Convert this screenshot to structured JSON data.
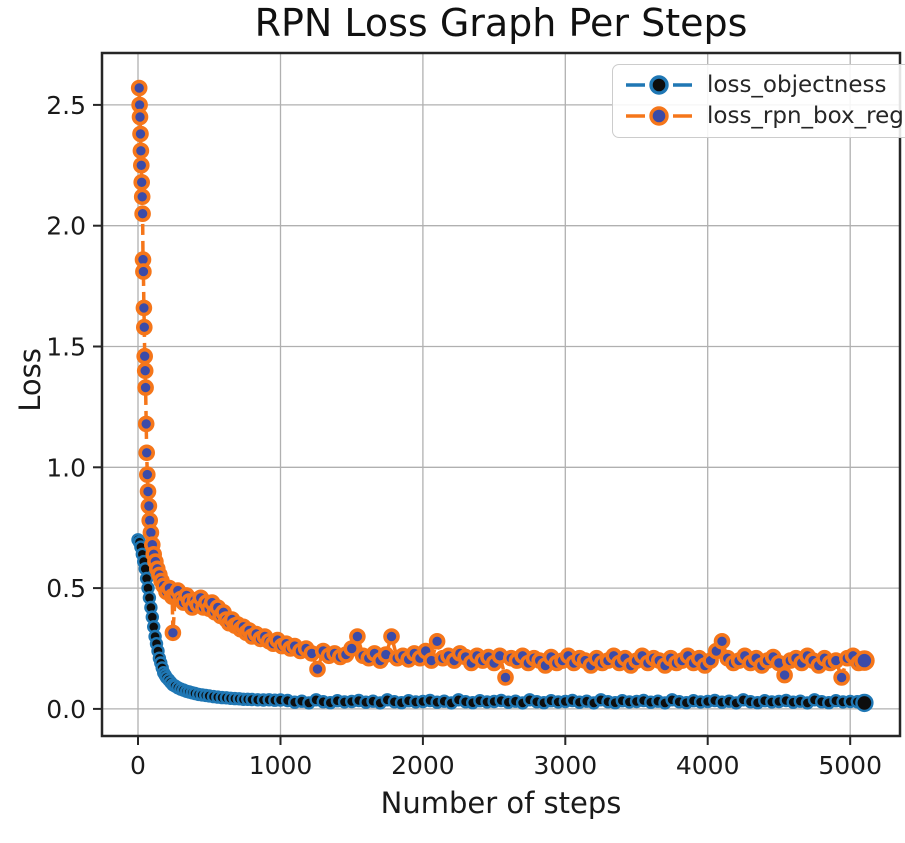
{
  "chart_data": {
    "type": "line",
    "title": "RPN Loss Graph Per Steps",
    "xlabel": "Number of steps",
    "ylabel": "Loss",
    "xlim": [
      -253,
      5350
    ],
    "ylim": [
      -0.112,
      2.715
    ],
    "xticks": [
      0,
      1000,
      2000,
      3000,
      4000,
      5000
    ],
    "xtick_labels": [
      "0",
      "1000",
      "2000",
      "3000",
      "4000",
      "5000"
    ],
    "yticks": [
      0,
      0.5,
      1.0,
      1.5,
      2.0,
      2.5
    ],
    "ytick_labels": [
      "0.0",
      "0.5",
      "1.0",
      "1.5",
      "2.0",
      "2.5"
    ],
    "grid": true,
    "grid_color": "#b0b0b0",
    "axis_color": "#262626",
    "tick_label_color": "#1a1a1a",
    "legend_position": "upper right",
    "series": [
      {
        "name": "loss_objectness",
        "line_color": "#1f77b4",
        "marker_fill": "#0d0d0d",
        "marker_edge": "#1f77b4",
        "linestyle": "dashed",
        "points": [
          [
            0,
            0.7
          ],
          [
            10,
            0.69
          ],
          [
            20,
            0.67
          ],
          [
            30,
            0.64
          ],
          [
            40,
            0.61
          ],
          [
            50,
            0.58
          ],
          [
            60,
            0.54
          ],
          [
            70,
            0.5
          ],
          [
            80,
            0.46
          ],
          [
            90,
            0.42
          ],
          [
            100,
            0.38
          ],
          [
            110,
            0.34
          ],
          [
            120,
            0.3
          ],
          [
            130,
            0.27
          ],
          [
            140,
            0.24
          ],
          [
            150,
            0.21
          ],
          [
            160,
            0.19
          ],
          [
            170,
            0.17
          ],
          [
            180,
            0.15
          ],
          [
            190,
            0.14
          ],
          [
            200,
            0.13
          ],
          [
            215,
            0.12
          ],
          [
            230,
            0.11
          ],
          [
            245,
            0.1
          ],
          [
            260,
            0.095
          ],
          [
            280,
            0.088
          ],
          [
            300,
            0.082
          ],
          [
            320,
            0.078
          ],
          [
            340,
            0.073
          ],
          [
            360,
            0.07
          ],
          [
            380,
            0.067
          ],
          [
            400,
            0.064
          ],
          [
            425,
            0.06
          ],
          [
            450,
            0.058
          ],
          [
            475,
            0.056
          ],
          [
            500,
            0.054
          ],
          [
            530,
            0.051
          ],
          [
            560,
            0.049
          ],
          [
            590,
            0.047
          ],
          [
            620,
            0.046
          ],
          [
            650,
            0.044
          ],
          [
            680,
            0.043
          ],
          [
            710,
            0.042
          ],
          [
            740,
            0.04
          ],
          [
            770,
            0.04
          ],
          [
            800,
            0.039
          ],
          [
            840,
            0.038
          ],
          [
            880,
            0.037
          ],
          [
            920,
            0.038
          ],
          [
            960,
            0.036
          ],
          [
            1000,
            0.037
          ],
          [
            1050,
            0.035
          ],
          [
            1100,
            0.028
          ],
          [
            1150,
            0.032
          ],
          [
            1200,
            0.025
          ],
          [
            1250,
            0.038
          ],
          [
            1300,
            0.03
          ],
          [
            1350,
            0.026
          ],
          [
            1400,
            0.034
          ],
          [
            1450,
            0.029
          ],
          [
            1500,
            0.031
          ],
          [
            1550,
            0.035
          ],
          [
            1600,
            0.028
          ],
          [
            1650,
            0.032
          ],
          [
            1700,
            0.025
          ],
          [
            1750,
            0.038
          ],
          [
            1800,
            0.03
          ],
          [
            1850,
            0.026
          ],
          [
            1900,
            0.034
          ],
          [
            1950,
            0.029
          ],
          [
            2000,
            0.031
          ],
          [
            2050,
            0.035
          ],
          [
            2100,
            0.028
          ],
          [
            2150,
            0.032
          ],
          [
            2200,
            0.025
          ],
          [
            2250,
            0.038
          ],
          [
            2300,
            0.03
          ],
          [
            2350,
            0.026
          ],
          [
            2400,
            0.034
          ],
          [
            2450,
            0.029
          ],
          [
            2500,
            0.031
          ],
          [
            2550,
            0.035
          ],
          [
            2600,
            0.028
          ],
          [
            2650,
            0.032
          ],
          [
            2700,
            0.025
          ],
          [
            2750,
            0.038
          ],
          [
            2800,
            0.03
          ],
          [
            2850,
            0.026
          ],
          [
            2900,
            0.034
          ],
          [
            2950,
            0.029
          ],
          [
            3000,
            0.031
          ],
          [
            3050,
            0.035
          ],
          [
            3100,
            0.028
          ],
          [
            3150,
            0.032
          ],
          [
            3200,
            0.025
          ],
          [
            3250,
            0.038
          ],
          [
            3300,
            0.03
          ],
          [
            3350,
            0.026
          ],
          [
            3400,
            0.034
          ],
          [
            3450,
            0.029
          ],
          [
            3500,
            0.031
          ],
          [
            3550,
            0.035
          ],
          [
            3600,
            0.028
          ],
          [
            3650,
            0.032
          ],
          [
            3700,
            0.025
          ],
          [
            3750,
            0.038
          ],
          [
            3800,
            0.03
          ],
          [
            3850,
            0.026
          ],
          [
            3900,
            0.034
          ],
          [
            3950,
            0.029
          ],
          [
            4000,
            0.031
          ],
          [
            4050,
            0.035
          ],
          [
            4100,
            0.028
          ],
          [
            4150,
            0.032
          ],
          [
            4200,
            0.025
          ],
          [
            4250,
            0.038
          ],
          [
            4300,
            0.03
          ],
          [
            4350,
            0.026
          ],
          [
            4400,
            0.034
          ],
          [
            4450,
            0.029
          ],
          [
            4500,
            0.031
          ],
          [
            4550,
            0.035
          ],
          [
            4600,
            0.028
          ],
          [
            4650,
            0.032
          ],
          [
            4700,
            0.025
          ],
          [
            4750,
            0.038
          ],
          [
            4800,
            0.03
          ],
          [
            4850,
            0.026
          ],
          [
            4900,
            0.034
          ],
          [
            4950,
            0.029
          ],
          [
            5000,
            0.031
          ],
          [
            5050,
            0.03
          ],
          [
            5100,
            0.025
          ]
        ]
      },
      {
        "name": "loss_rpn_box_reg",
        "line_color": "#f5761a",
        "marker_fill": "#3b4ba8",
        "marker_edge": "#f5761a",
        "linestyle": "dashed",
        "points": [
          [
            8,
            2.57
          ],
          [
            11,
            2.5
          ],
          [
            14,
            2.45
          ],
          [
            17,
            2.38
          ],
          [
            20,
            2.31
          ],
          [
            23,
            2.25
          ],
          [
            26,
            2.18
          ],
          [
            29,
            2.12
          ],
          [
            32,
            2.05
          ],
          [
            35,
            1.86
          ],
          [
            38,
            1.81
          ],
          [
            41,
            1.66
          ],
          [
            44,
            1.58
          ],
          [
            47,
            1.46
          ],
          [
            50,
            1.4
          ],
          [
            53,
            1.33
          ],
          [
            57,
            1.18
          ],
          [
            61,
            1.06
          ],
          [
            65,
            0.97
          ],
          [
            70,
            0.9
          ],
          [
            76,
            0.84
          ],
          [
            82,
            0.78
          ],
          [
            90,
            0.73
          ],
          [
            100,
            0.68
          ],
          [
            110,
            0.64
          ],
          [
            122,
            0.61
          ],
          [
            135,
            0.58
          ],
          [
            150,
            0.555
          ],
          [
            165,
            0.53
          ],
          [
            180,
            0.51
          ],
          [
            200,
            0.485
          ],
          [
            220,
            0.5
          ],
          [
            240,
            0.465
          ],
          [
            245,
            0.315
          ],
          [
            262,
            0.47
          ],
          [
            280,
            0.49
          ],
          [
            300,
            0.455
          ],
          [
            320,
            0.44
          ],
          [
            340,
            0.47
          ],
          [
            360,
            0.445
          ],
          [
            380,
            0.42
          ],
          [
            400,
            0.45
          ],
          [
            420,
            0.43
          ],
          [
            440,
            0.46
          ],
          [
            460,
            0.42
          ],
          [
            480,
            0.44
          ],
          [
            500,
            0.415
          ],
          [
            520,
            0.44
          ],
          [
            540,
            0.4
          ],
          [
            560,
            0.42
          ],
          [
            580,
            0.385
          ],
          [
            600,
            0.4
          ],
          [
            620,
            0.37
          ],
          [
            640,
            0.355
          ],
          [
            660,
            0.37
          ],
          [
            680,
            0.345
          ],
          [
            700,
            0.35
          ],
          [
            720,
            0.33
          ],
          [
            740,
            0.34
          ],
          [
            760,
            0.315
          ],
          [
            780,
            0.325
          ],
          [
            800,
            0.3
          ],
          [
            830,
            0.31
          ],
          [
            860,
            0.29
          ],
          [
            890,
            0.3
          ],
          [
            920,
            0.28
          ],
          [
            950,
            0.27
          ],
          [
            980,
            0.285
          ],
          [
            1010,
            0.26
          ],
          [
            1040,
            0.27
          ],
          [
            1070,
            0.25
          ],
          [
            1100,
            0.26
          ],
          [
            1140,
            0.24
          ],
          [
            1180,
            0.25
          ],
          [
            1220,
            0.23
          ],
          [
            1260,
            0.165
          ],
          [
            1300,
            0.24
          ],
          [
            1340,
            0.22
          ],
          [
            1380,
            0.23
          ],
          [
            1420,
            0.215
          ],
          [
            1460,
            0.225
          ],
          [
            1500,
            0.25
          ],
          [
            1540,
            0.3
          ],
          [
            1580,
            0.22
          ],
          [
            1620,
            0.21
          ],
          [
            1660,
            0.23
          ],
          [
            1700,
            0.2
          ],
          [
            1740,
            0.225
          ],
          [
            1780,
            0.3
          ],
          [
            1820,
            0.21
          ],
          [
            1860,
            0.22
          ],
          [
            1900,
            0.205
          ],
          [
            1940,
            0.23
          ],
          [
            1980,
            0.21
          ],
          [
            2020,
            0.24
          ],
          [
            2060,
            0.2
          ],
          [
            2100,
            0.28
          ],
          [
            2140,
            0.21
          ],
          [
            2180,
            0.22
          ],
          [
            2220,
            0.2
          ],
          [
            2260,
            0.23
          ],
          [
            2300,
            0.215
          ],
          [
            2340,
            0.19
          ],
          [
            2380,
            0.22
          ],
          [
            2420,
            0.2
          ],
          [
            2460,
            0.215
          ],
          [
            2500,
            0.19
          ],
          [
            2540,
            0.22
          ],
          [
            2580,
            0.13
          ],
          [
            2620,
            0.21
          ],
          [
            2660,
            0.2
          ],
          [
            2700,
            0.22
          ],
          [
            2740,
            0.19
          ],
          [
            2780,
            0.21
          ],
          [
            2820,
            0.2
          ],
          [
            2860,
            0.18
          ],
          [
            2900,
            0.215
          ],
          [
            2940,
            0.19
          ],
          [
            2980,
            0.2
          ],
          [
            3020,
            0.22
          ],
          [
            3060,
            0.19
          ],
          [
            3100,
            0.21
          ],
          [
            3140,
            0.2
          ],
          [
            3180,
            0.18
          ],
          [
            3220,
            0.21
          ],
          [
            3260,
            0.19
          ],
          [
            3300,
            0.2
          ],
          [
            3340,
            0.22
          ],
          [
            3380,
            0.19
          ],
          [
            3420,
            0.21
          ],
          [
            3460,
            0.18
          ],
          [
            3500,
            0.2
          ],
          [
            3540,
            0.22
          ],
          [
            3580,
            0.19
          ],
          [
            3620,
            0.21
          ],
          [
            3660,
            0.2
          ],
          [
            3700,
            0.18
          ],
          [
            3740,
            0.21
          ],
          [
            3780,
            0.19
          ],
          [
            3820,
            0.2
          ],
          [
            3860,
            0.22
          ],
          [
            3900,
            0.19
          ],
          [
            3940,
            0.21
          ],
          [
            3980,
            0.18
          ],
          [
            4020,
            0.2
          ],
          [
            4060,
            0.24
          ],
          [
            4100,
            0.28
          ],
          [
            4140,
            0.21
          ],
          [
            4180,
            0.19
          ],
          [
            4220,
            0.2
          ],
          [
            4260,
            0.22
          ],
          [
            4300,
            0.19
          ],
          [
            4340,
            0.21
          ],
          [
            4380,
            0.18
          ],
          [
            4420,
            0.2
          ],
          [
            4460,
            0.215
          ],
          [
            4500,
            0.19
          ],
          [
            4540,
            0.14
          ],
          [
            4580,
            0.2
          ],
          [
            4620,
            0.21
          ],
          [
            4660,
            0.19
          ],
          [
            4700,
            0.22
          ],
          [
            4740,
            0.2
          ],
          [
            4780,
            0.18
          ],
          [
            4820,
            0.21
          ],
          [
            4860,
            0.19
          ],
          [
            4900,
            0.2
          ],
          [
            4940,
            0.13
          ],
          [
            4980,
            0.21
          ],
          [
            5020,
            0.22
          ],
          [
            5060,
            0.19
          ],
          [
            5100,
            0.2
          ]
        ]
      }
    ]
  }
}
